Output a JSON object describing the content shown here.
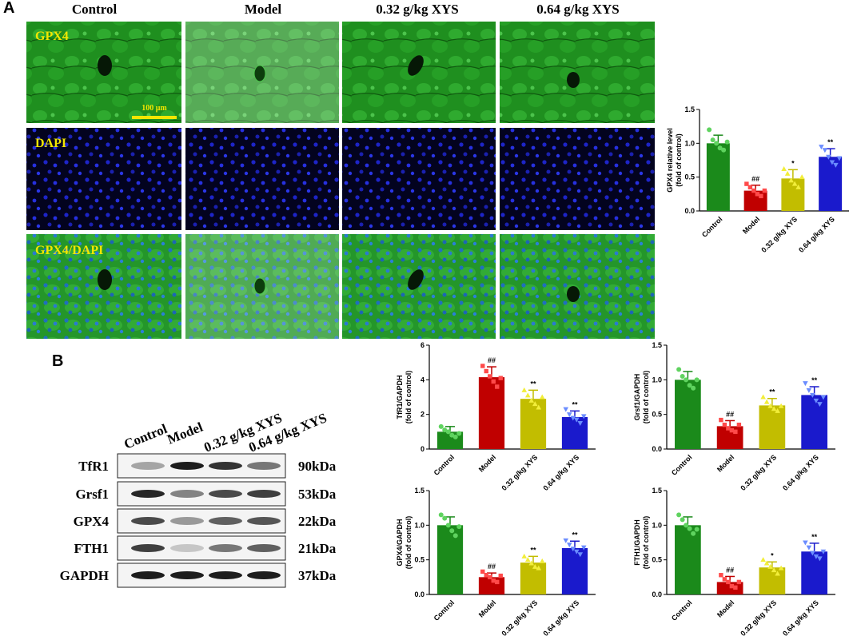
{
  "panel_a": {
    "label": "A",
    "columns": [
      "Control",
      "Model",
      "0.32 g/kg XYS",
      "0.64 g/kg XYS"
    ],
    "rows": [
      "GPX4",
      "DAPI",
      "GPX4/DAPI"
    ],
    "scale_bar": "100 μm"
  },
  "panel_b": {
    "label": "B",
    "lanes": [
      "Control",
      "Model",
      "0.32 g/kg XYS",
      "0.64 g/kg XYS"
    ],
    "proteins": [
      "TfR1",
      "Grsf1",
      "GPX4",
      "FTH1",
      "GAPDH"
    ],
    "sizes": [
      "90kDa",
      "53kDa",
      "22kDa",
      "21kDa",
      "37kDa"
    ]
  },
  "chart_data": [
    {
      "type": "bar",
      "ylabel": [
        "GPX4 relative level",
        "(fold of control)"
      ],
      "categories": [
        "Control",
        "Model",
        "0.32 g/kg XYS",
        "0.64 g/kg XYS"
      ],
      "values": [
        1.0,
        0.3,
        0.48,
        0.8
      ],
      "errors": [
        0.12,
        0.08,
        0.13,
        0.12
      ],
      "points": [
        [
          1.2,
          1.05,
          1.0,
          0.93,
          0.9,
          1.02
        ],
        [
          0.4,
          0.35,
          0.3,
          0.25,
          0.22,
          0.3
        ],
        [
          0.62,
          0.55,
          0.45,
          0.4,
          0.35,
          0.5
        ],
        [
          0.95,
          0.9,
          0.8,
          0.72,
          0.68,
          0.78
        ]
      ],
      "annotations": [
        null,
        "##",
        "*",
        "**"
      ],
      "colors": [
        "#1b8a1b",
        "#c00000",
        "#c2bd00",
        "#1a1acc"
      ],
      "point_colors": [
        "#5fd35f",
        "#ff4a4a",
        "#f2ee3a",
        "#6a8cff"
      ],
      "ylim": [
        0,
        1.5
      ],
      "yticks": [
        {
          "value": 0,
          "label": "0.0"
        },
        0.5,
        {
          "value": 1,
          "label": "1.0"
        },
        1.5
      ]
    },
    {
      "type": "bar",
      "ylabel": [
        "TfR1/GAPDH",
        "(fold of control)"
      ],
      "categories": [
        "Control",
        "Model",
        "0.32 g/kg XYS",
        "0.64 g/kg XYS"
      ],
      "values": [
        1.0,
        4.15,
        2.9,
        1.85
      ],
      "errors": [
        0.3,
        0.6,
        0.5,
        0.35
      ],
      "points": [
        [
          1.3,
          1.1,
          1.0,
          0.8,
          0.7,
          0.9
        ],
        [
          4.8,
          4.5,
          4.2,
          3.9,
          3.6,
          4.1
        ],
        [
          3.4,
          3.1,
          2.8,
          2.6,
          2.4,
          3.0
        ],
        [
          2.3,
          2.0,
          1.8,
          1.7,
          1.5,
          1.9
        ]
      ],
      "annotations": [
        null,
        "##",
        "**",
        "**"
      ],
      "colors": [
        "#1b8a1b",
        "#c00000",
        "#c2bd00",
        "#1a1acc"
      ],
      "point_colors": [
        "#5fd35f",
        "#ff4a4a",
        "#f2ee3a",
        "#6a8cff"
      ],
      "ylim": [
        0,
        6
      ],
      "yticks": [
        0,
        2,
        4,
        6
      ]
    },
    {
      "type": "bar",
      "ylabel": [
        "Grsf1/GAPDH",
        "(fold of control)"
      ],
      "categories": [
        "Control",
        "Model",
        "0.32 g/kg XYS",
        "0.64 g/kg XYS"
      ],
      "values": [
        1.0,
        0.33,
        0.63,
        0.78
      ],
      "errors": [
        0.12,
        0.08,
        0.1,
        0.12
      ],
      "points": [
        [
          1.15,
          1.05,
          1.0,
          0.92,
          0.88,
          1.0
        ],
        [
          0.42,
          0.35,
          0.3,
          0.27,
          0.25,
          0.35
        ],
        [
          0.75,
          0.68,
          0.62,
          0.58,
          0.55,
          0.62
        ],
        [
          0.95,
          0.85,
          0.78,
          0.7,
          0.65,
          0.75
        ]
      ],
      "annotations": [
        null,
        "##",
        "**",
        "**"
      ],
      "colors": [
        "#1b8a1b",
        "#c00000",
        "#c2bd00",
        "#1a1acc"
      ],
      "point_colors": [
        "#5fd35f",
        "#ff4a4a",
        "#f2ee3a",
        "#6a8cff"
      ],
      "ylim": [
        0,
        1.5
      ],
      "yticks": [
        {
          "value": 0,
          "label": "0.0"
        },
        0.5,
        {
          "value": 1,
          "label": "1.0"
        },
        1.5
      ]
    },
    {
      "type": "bar",
      "ylabel": [
        "GPX4/GAPDH",
        "(fold of control)"
      ],
      "categories": [
        "Control",
        "Model",
        "0.32 g/kg XYS",
        "0.64 g/kg XYS"
      ],
      "values": [
        1.0,
        0.25,
        0.46,
        0.67
      ],
      "errors": [
        0.12,
        0.06,
        0.09,
        0.1
      ],
      "points": [
        [
          1.15,
          1.1,
          1.0,
          0.92,
          0.85,
          0.98
        ],
        [
          0.33,
          0.28,
          0.25,
          0.2,
          0.18,
          0.27
        ],
        [
          0.55,
          0.5,
          0.45,
          0.4,
          0.38,
          0.48
        ],
        [
          0.78,
          0.72,
          0.66,
          0.62,
          0.58,
          0.68
        ]
      ],
      "annotations": [
        null,
        "##",
        "**",
        "**"
      ],
      "colors": [
        "#1b8a1b",
        "#c00000",
        "#c2bd00",
        "#1a1acc"
      ],
      "point_colors": [
        "#5fd35f",
        "#ff4a4a",
        "#f2ee3a",
        "#6a8cff"
      ],
      "ylim": [
        0,
        1.5
      ],
      "yticks": [
        {
          "value": 0,
          "label": "0.0"
        },
        0.5,
        {
          "value": 1,
          "label": "1.0"
        },
        1.5
      ]
    },
    {
      "type": "bar",
      "ylabel": [
        "FTH1/GAPDH",
        "(fold of control)"
      ],
      "categories": [
        "Control",
        "Model",
        "0.32 g/kg XYS",
        "0.64 g/kg XYS"
      ],
      "values": [
        1.0,
        0.18,
        0.39,
        0.62
      ],
      "errors": [
        0.12,
        0.08,
        0.08,
        0.12
      ],
      "points": [
        [
          1.15,
          1.08,
          1.0,
          0.95,
          0.88,
          0.94
        ],
        [
          0.28,
          0.22,
          0.18,
          0.12,
          0.1,
          0.18
        ],
        [
          0.5,
          0.45,
          0.4,
          0.35,
          0.3,
          0.38
        ],
        [
          0.75,
          0.68,
          0.6,
          0.55,
          0.52,
          0.62
        ]
      ],
      "annotations": [
        null,
        "##",
        "*",
        "**"
      ],
      "colors": [
        "#1b8a1b",
        "#c00000",
        "#c2bd00",
        "#1a1acc"
      ],
      "point_colors": [
        "#5fd35f",
        "#ff4a4a",
        "#f2ee3a",
        "#6a8cff"
      ],
      "ylim": [
        0,
        1.5
      ],
      "yticks": [
        {
          "value": 0,
          "label": "0.0"
        },
        0.5,
        {
          "value": 1,
          "label": "1.0"
        },
        1.5
      ]
    }
  ]
}
